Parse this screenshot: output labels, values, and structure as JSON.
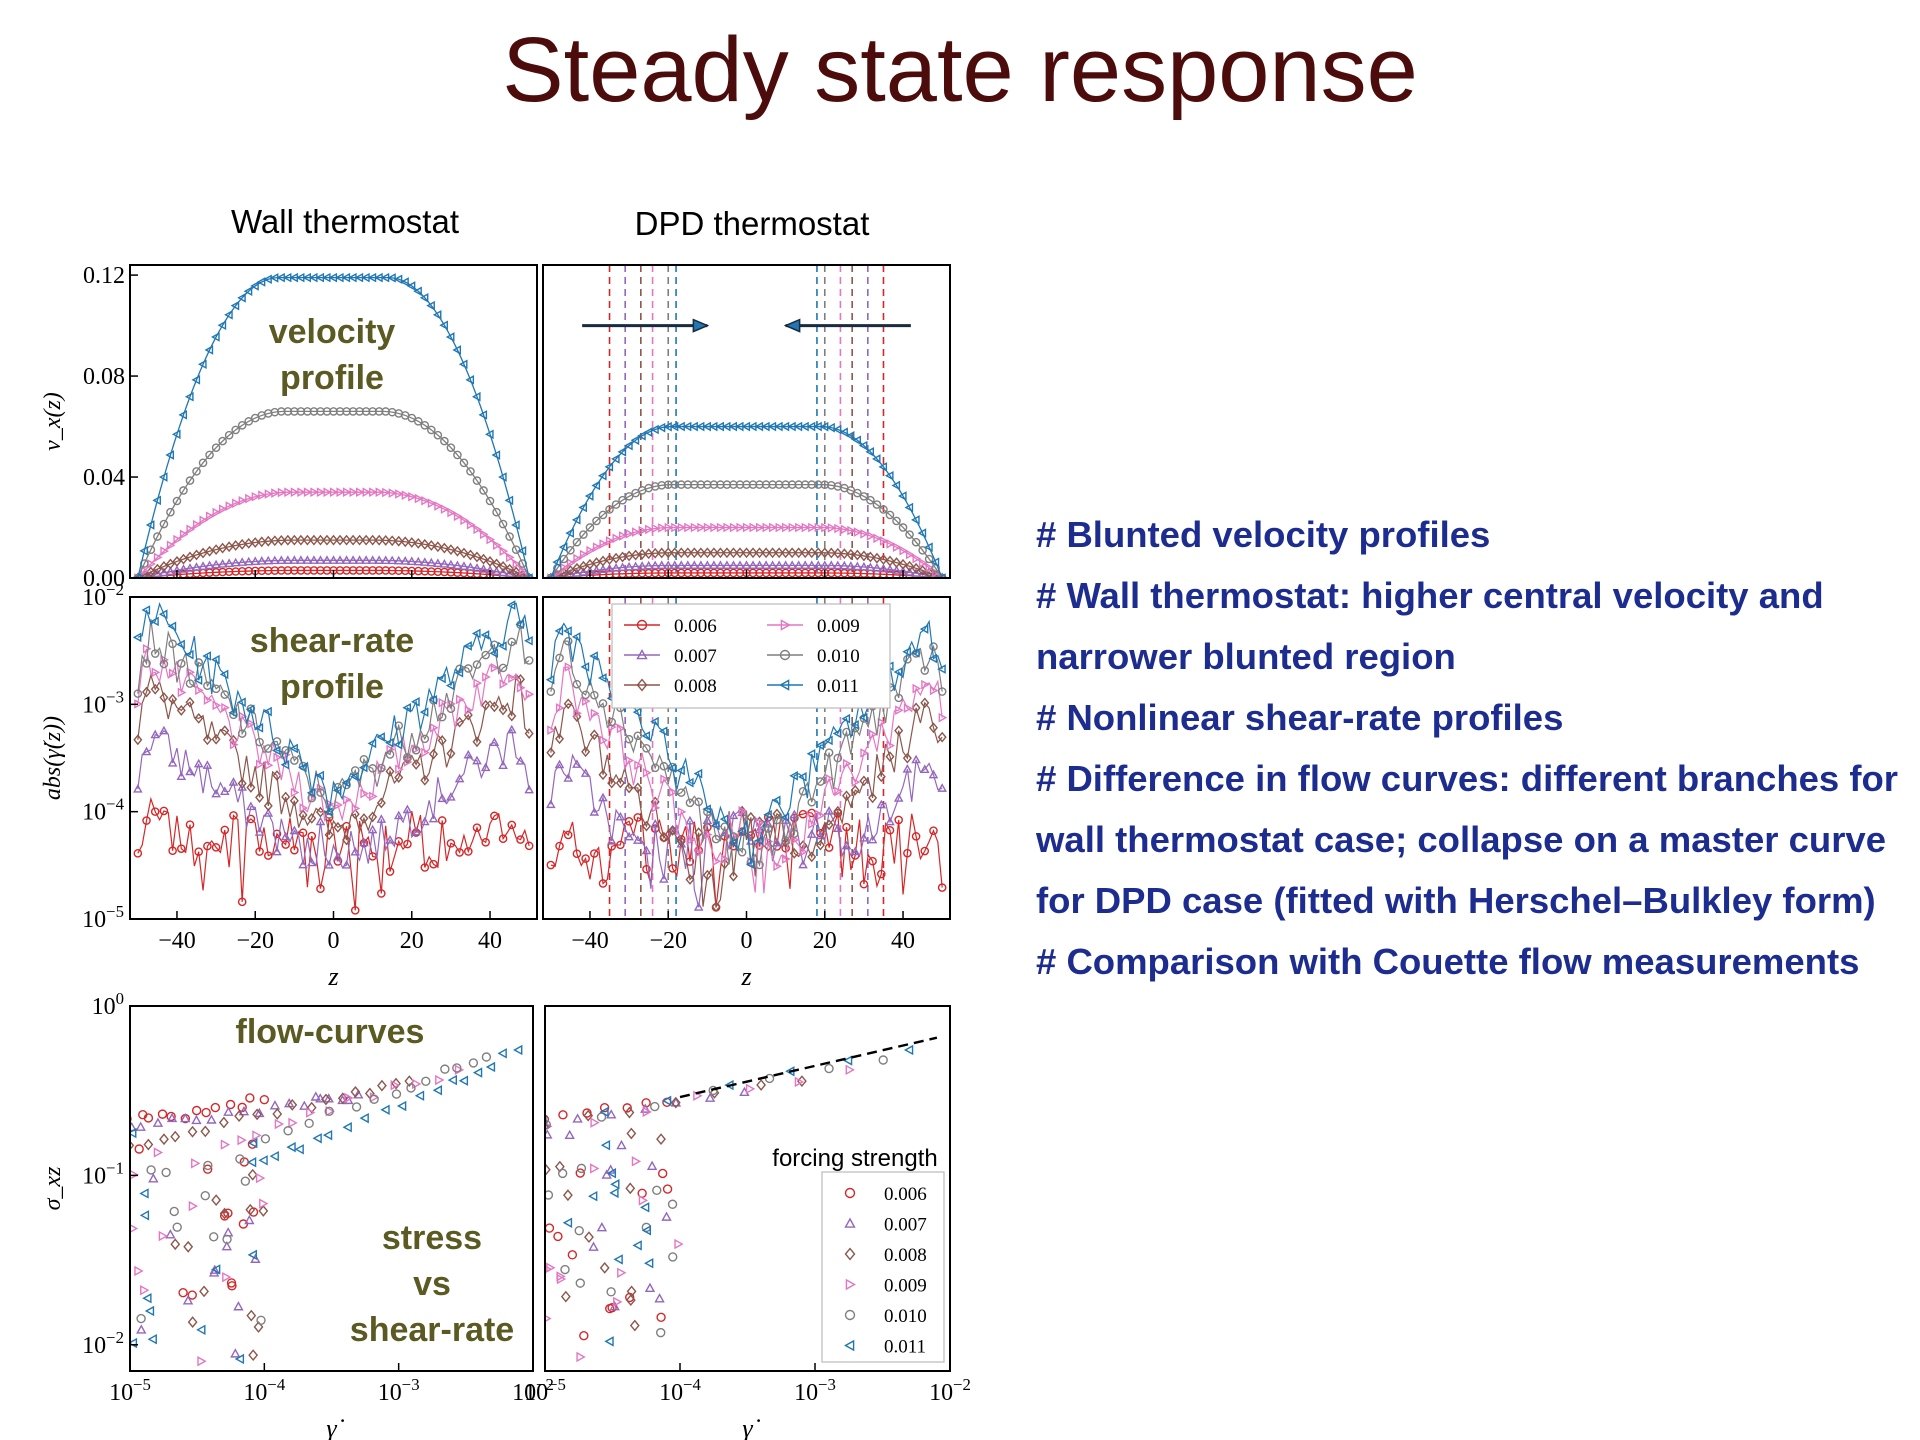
{
  "slide": {
    "title": "Steady state response",
    "column_titles": [
      "Wall thermostat",
      "DPD thermostat"
    ],
    "notes": [
      "# Blunted velocity profiles",
      "# Wall thermostat: higher central velocity and narrower blunted region",
      "# Nonlinear shear-rate profiles",
      "# Difference in flow curves: different branches for wall thermostat case; collapse on a master curve for DPD case  (fitted with Herschel–Bulkley form)",
      "# Comparison with Couette flow measurements"
    ]
  },
  "colors": {
    "title": "#4d0c0c",
    "notes": "#1c2d8f",
    "panel_annotation": "#5a5a22",
    "series": [
      "#d62728",
      "#9467bd",
      "#8c564b",
      "#e377c2",
      "#7f7f7f",
      "#1f77b4"
    ]
  },
  "chart_data": [
    {
      "id": "velocity-wall",
      "type": "line",
      "annotation": [
        "velocity",
        "profile"
      ],
      "xlabel": "",
      "ylabel": "v_x(z)",
      "xlim": [
        -52,
        52
      ],
      "ylim": [
        0,
        0.124
      ],
      "yticks": [
        "0.00",
        "0.04",
        "0.08",
        "0.12"
      ],
      "xticks": [],
      "series": [
        {
          "name": "0.006",
          "marker": "o",
          "plateau": 0.003,
          "shape": 0.8
        },
        {
          "name": "0.007",
          "marker": "^",
          "plateau": 0.007,
          "shape": 0.8
        },
        {
          "name": "0.008",
          "marker": "D",
          "plateau": 0.015,
          "shape": 0.8
        },
        {
          "name": "0.009",
          "marker": ">",
          "plateau": 0.034,
          "shape": 0.78
        },
        {
          "name": "0.010",
          "marker": "o",
          "plateau": 0.066,
          "shape": 0.75
        },
        {
          "name": "0.011",
          "marker": "<",
          "plateau": 0.119,
          "shape": 0.72
        }
      ]
    },
    {
      "id": "velocity-dpd",
      "type": "line",
      "xlabel": "",
      "ylabel": "",
      "xlim": [
        -52,
        52
      ],
      "ylim": [
        0,
        0.124
      ],
      "yticks": [],
      "xticks": [],
      "boundary_lines": [
        -35,
        35,
        -31,
        31,
        -27,
        27,
        -24,
        24,
        -20,
        20,
        -18,
        18
      ],
      "arrows": [
        {
          "from": -42,
          "to": -10,
          "y": 0.1
        },
        {
          "from": 42,
          "to": 10,
          "y": 0.1
        }
      ],
      "series": [
        {
          "name": "0.006",
          "marker": "o",
          "plateau": 0.002,
          "shape": 0.62
        },
        {
          "name": "0.007",
          "marker": "^",
          "plateau": 0.005,
          "shape": 0.62
        },
        {
          "name": "0.008",
          "marker": "D",
          "plateau": 0.01,
          "shape": 0.62
        },
        {
          "name": "0.009",
          "marker": ">",
          "plateau": 0.02,
          "shape": 0.62
        },
        {
          "name": "0.010",
          "marker": "o",
          "plateau": 0.037,
          "shape": 0.62
        },
        {
          "name": "0.011",
          "marker": "<",
          "plateau": 0.06,
          "shape": 0.62
        }
      ]
    },
    {
      "id": "shear-wall",
      "type": "line",
      "annotation": [
        "shear-rate",
        "profile"
      ],
      "xlabel": "z",
      "ylabel": "abs(γ̇(z))",
      "xlim": [
        -52,
        52
      ],
      "ylim": [
        1e-05,
        0.01
      ],
      "yscale": "log",
      "yticks": [
        "10^-5",
        "10^-4",
        "10^-3",
        "10^-2"
      ],
      "xticks": [
        "−40",
        "−20",
        "0",
        "20",
        "40"
      ],
      "series": [
        {
          "name": "0.006",
          "marker": "o",
          "peak": 9e-05,
          "decay": 18
        },
        {
          "name": "0.007",
          "marker": "^",
          "peak": 0.0005,
          "decay": 16
        },
        {
          "name": "0.008",
          "marker": "D",
          "peak": 0.0014,
          "decay": 15
        },
        {
          "name": "0.009",
          "marker": ">",
          "peak": 0.0028,
          "decay": 14
        },
        {
          "name": "0.010",
          "marker": "o",
          "peak": 0.0045,
          "decay": 13
        },
        {
          "name": "0.011",
          "marker": "<",
          "peak": 0.0075,
          "decay": 12
        }
      ]
    },
    {
      "id": "shear-dpd",
      "type": "line",
      "xlabel": "z",
      "ylabel": "",
      "xlim": [
        -52,
        52
      ],
      "ylim": [
        1e-05,
        0.01
      ],
      "yscale": "log",
      "yticks": [],
      "xticks": [
        "−40",
        "−20",
        "0",
        "20",
        "40"
      ],
      "boundary_lines": [
        -35,
        35,
        -31,
        31,
        -27,
        27,
        -24,
        24,
        -20,
        20,
        -18,
        18
      ],
      "legend": {
        "placement": "top-center",
        "entries": [
          "0.006",
          "0.007",
          "0.008",
          "0.009",
          "0.010",
          "0.011"
        ]
      },
      "series": [
        {
          "name": "0.006",
          "marker": "o",
          "peak": 6e-05,
          "decay": 10
        },
        {
          "name": "0.007",
          "marker": "^",
          "peak": 0.0003,
          "decay": 10
        },
        {
          "name": "0.008",
          "marker": "D",
          "peak": 0.0009,
          "decay": 10
        },
        {
          "name": "0.009",
          "marker": ">",
          "peak": 0.0018,
          "decay": 10
        },
        {
          "name": "0.010",
          "marker": "o",
          "peak": 0.0032,
          "decay": 10
        },
        {
          "name": "0.011",
          "marker": "<",
          "peak": 0.005,
          "decay": 10
        }
      ]
    },
    {
      "id": "flow-wall",
      "type": "scatter",
      "annotation": [
        "flow-curves",
        "stress",
        "vs",
        "shear-rate"
      ],
      "xlabel": "γ̇",
      "ylabel": "σ_xz",
      "xscale": "log",
      "yscale": "log",
      "xlim": [
        1e-05,
        0.01
      ],
      "ylim": [
        0.007,
        1
      ],
      "xticks": [
        "10^-5",
        "10^-4",
        "10^-3",
        "10^-2"
      ],
      "yticks": [
        "10^-2",
        "10^-1",
        "10^0"
      ],
      "series": [
        {
          "name": "0.006",
          "marker": "o",
          "branch": [
            [
              1e-05,
              0.22
            ],
            [
              3e-05,
              0.23
            ],
            [
              0.0001,
              0.28
            ]
          ]
        },
        {
          "name": "0.007",
          "marker": "^",
          "branch": [
            [
              1e-05,
              0.2
            ],
            [
              4e-05,
              0.22
            ],
            [
              0.0002,
              0.27
            ],
            [
              0.0005,
              0.3
            ]
          ]
        },
        {
          "name": "0.008",
          "marker": "D",
          "branch": [
            [
              1e-05,
              0.15
            ],
            [
              5e-05,
              0.2
            ],
            [
              0.0003,
              0.28
            ],
            [
              0.0012,
              0.36
            ]
          ]
        },
        {
          "name": "0.009",
          "marker": ">",
          "branch": [
            [
              5e-05,
              0.15
            ],
            [
              0.0003,
              0.25
            ],
            [
              0.0028,
              0.42
            ]
          ]
        },
        {
          "name": "0.010",
          "marker": "o",
          "branch": [
            [
              0.0001,
              0.16
            ],
            [
              0.001,
              0.32
            ],
            [
              0.0045,
              0.5
            ]
          ]
        },
        {
          "name": "0.011",
          "marker": "<",
          "branch": [
            [
              8e-05,
              0.12
            ],
            [
              0.0003,
              0.17
            ],
            [
              0.002,
              0.32
            ],
            [
              0.0078,
              0.55
            ]
          ]
        }
      ]
    },
    {
      "id": "flow-dpd",
      "type": "scatter",
      "xlabel": "γ̇",
      "ylabel": "",
      "xscale": "log",
      "yscale": "log",
      "xlim": [
        1e-05,
        0.01
      ],
      "ylim": [
        0.007,
        1
      ],
      "xticks": [
        "10^-5",
        "10^-4",
        "10^-3",
        "10^-2"
      ],
      "yticks": [],
      "fit": {
        "style": "dashed",
        "from": [
          0.0001,
          0.29
        ],
        "to": [
          0.008,
          0.65
        ]
      },
      "legend": {
        "title": "forcing strength",
        "placement": "lower-right",
        "entries": [
          "0.006",
          "0.007",
          "0.008",
          "0.009",
          "0.010",
          "0.011"
        ]
      },
      "series": [
        {
          "name": "0.006",
          "marker": "o",
          "branch": [
            [
              1e-05,
              0.22
            ],
            [
              8e-05,
              0.27
            ]
          ]
        },
        {
          "name": "0.007",
          "marker": "^",
          "branch": [
            [
              1e-05,
              0.2
            ],
            [
              0.0003,
              0.31
            ]
          ]
        },
        {
          "name": "0.008",
          "marker": "D",
          "branch": [
            [
              1e-05,
              0.2
            ],
            [
              0.0008,
              0.36
            ]
          ]
        },
        {
          "name": "0.009",
          "marker": ">",
          "branch": [
            [
              1e-05,
              0.19
            ],
            [
              0.0018,
              0.42
            ]
          ]
        },
        {
          "name": "0.010",
          "marker": "o",
          "branch": [
            [
              1e-05,
              0.2
            ],
            [
              0.0032,
              0.48
            ]
          ]
        },
        {
          "name": "0.011",
          "marker": "<",
          "branch": [
            [
              1e-05,
              0.2
            ],
            [
              0.005,
              0.55
            ]
          ]
        }
      ]
    }
  ]
}
